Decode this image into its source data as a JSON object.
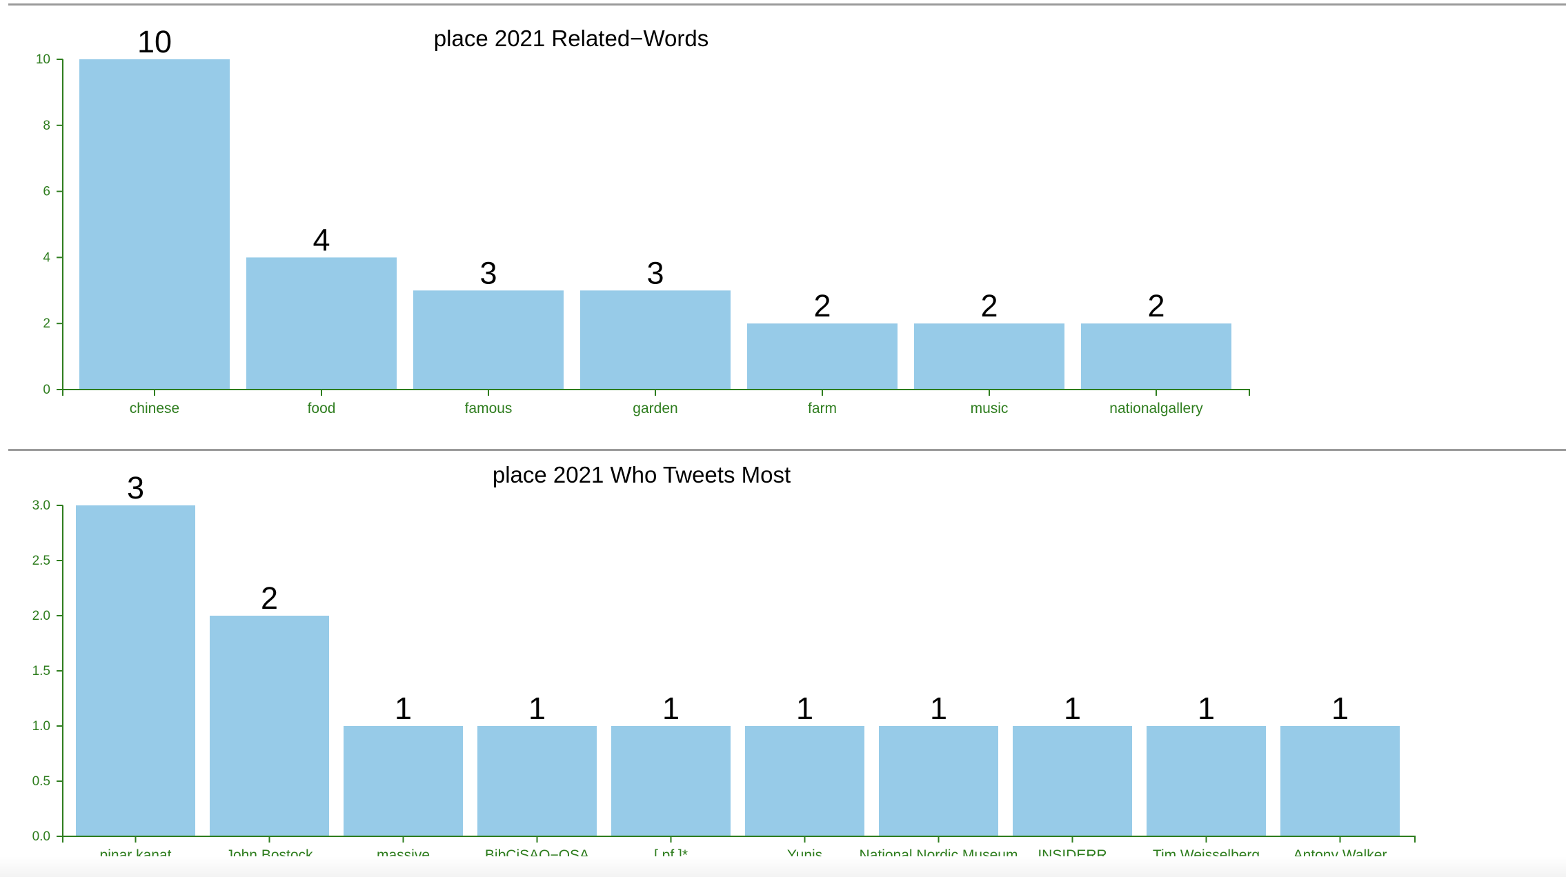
{
  "chart_data": [
    {
      "type": "bar",
      "title": "place 2021 Related−Words",
      "categories": [
        "chinese",
        "food",
        "famous",
        "garden",
        "farm",
        "music",
        "nationalgallery"
      ],
      "values": [
        10,
        4,
        3,
        3,
        2,
        2,
        2
      ],
      "ylim": [
        0,
        10
      ],
      "yticks": [
        "0",
        "2",
        "4",
        "6",
        "8",
        "10"
      ],
      "bar_color": "#97cbe8",
      "axis_color": "#2e7d1e",
      "grid": false
    },
    {
      "type": "bar",
      "title": "place 2021 Who Tweets Most",
      "categories": [
        "pinar kanat",
        "John Bostock",
        "massive",
        "BibCiSAO−OSA",
        "[ pf ]*",
        "Yunis",
        "National Nordic Museum",
        "INSIDERR",
        "Tim Weisselberg",
        "Antony Walker"
      ],
      "values": [
        3,
        2,
        1,
        1,
        1,
        1,
        1,
        1,
        1,
        1
      ],
      "ylim": [
        0,
        3
      ],
      "yticks": [
        "0.0",
        "0.5",
        "1.0",
        "1.5",
        "2.0",
        "2.5",
        "3.0"
      ],
      "bar_color": "#97cbe8",
      "axis_color": "#2e7d1e",
      "grid": false
    }
  ]
}
